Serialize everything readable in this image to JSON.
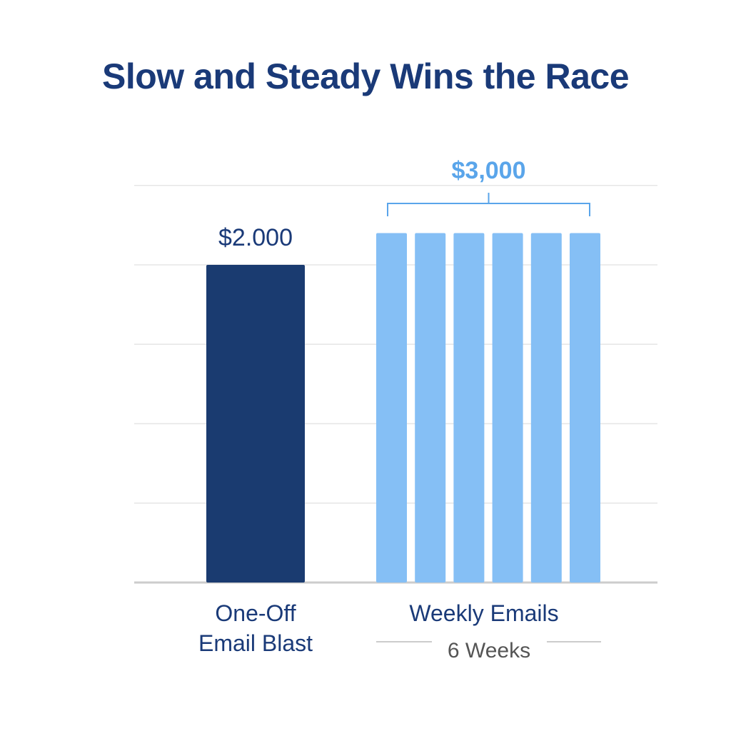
{
  "chart_data": {
    "type": "bar",
    "title": "Slow and Steady Wins the Race",
    "xlabel": "",
    "ylabel": "",
    "ylim": [
      0,
      2600
    ],
    "grid": true,
    "categories": [
      {
        "label_lines": [
          "One-Off",
          "Email Blast"
        ],
        "total_label": "$2.000",
        "value": 2000,
        "segments": [
          2000
        ]
      },
      {
        "label_lines": [
          "Weekly Emails"
        ],
        "sublabel": "6 Weeks",
        "total_label": "$3,000",
        "value": 3000,
        "segments": [
          2200,
          2200,
          2200,
          2200,
          2200,
          2200
        ]
      }
    ],
    "colors": {
      "title": "#1a3a78",
      "one_off_bar": "#1a3b70",
      "weekly_bar": "#85bff5",
      "weekly_label": "#5aa5ea",
      "category_label": "#1a3a78",
      "sublabel": "#555555",
      "grid": "#e6e6e6",
      "axis": "#cccccc"
    }
  }
}
